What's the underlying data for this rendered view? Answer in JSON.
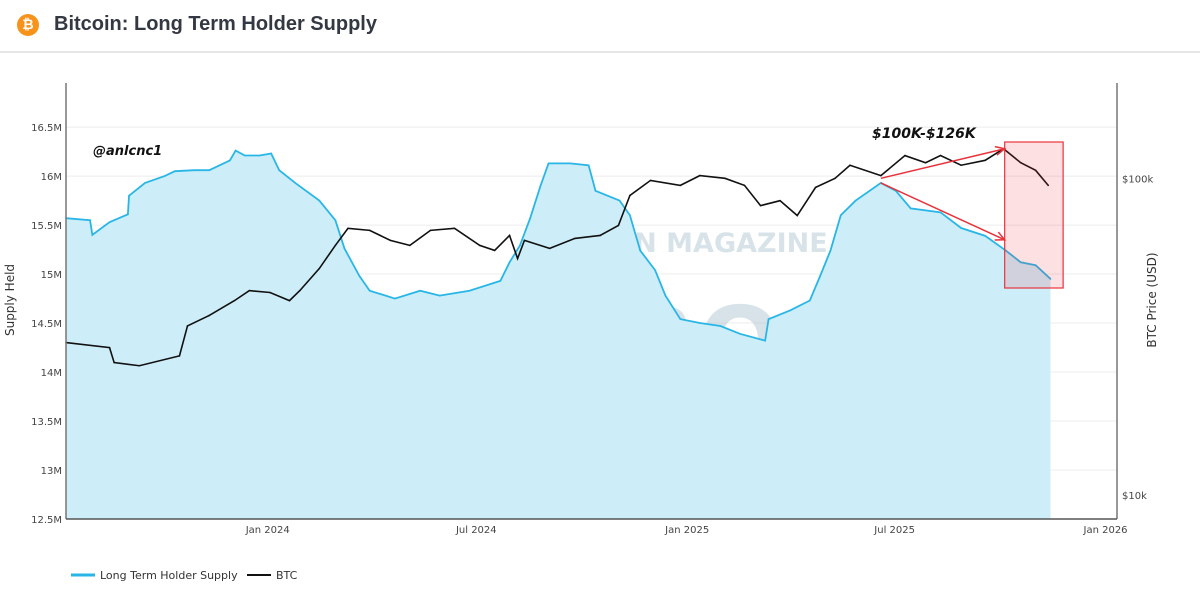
{
  "header": {
    "title": "Bitcoin: Long Term Holder Supply",
    "logo_icon": "bitcoin-icon",
    "logo_glyph": "₿"
  },
  "watermark": {
    "line1": "BITCOIN MAGAZINE",
    "line2": "PRO"
  },
  "chart_data": {
    "type": "line",
    "title": "Bitcoin: Long Term Holder Supply",
    "xlim": [
      "2023-07-09",
      "2026-01-11"
    ],
    "x_ticks": [
      {
        "date": "2024-01-01",
        "label": "Jan 2024"
      },
      {
        "date": "2024-07-01",
        "label": "Jul 2024"
      },
      {
        "date": "2025-01-01",
        "label": "Jan 2025"
      },
      {
        "date": "2025-07-01",
        "label": "Jul 2025"
      },
      {
        "date": "2026-01-01",
        "label": "Jan 2026"
      }
    ],
    "y_left": {
      "label": "Supply Held",
      "range": [
        12.5,
        16.95
      ],
      "unit": "M",
      "ticks": [
        {
          "value": 12.5,
          "label": "12.5M"
        },
        {
          "value": 13,
          "label": "13M"
        },
        {
          "value": 13.5,
          "label": "13.5M"
        },
        {
          "value": 14,
          "label": "14M"
        },
        {
          "value": 14.5,
          "label": "14.5M"
        },
        {
          "value": 15,
          "label": "15M"
        },
        {
          "value": 15.5,
          "label": "15.5M"
        },
        {
          "value": 16,
          "label": "16M"
        },
        {
          "value": 16.5,
          "label": "16.5M"
        }
      ]
    },
    "y_right": {
      "label": "BTC Price (USD)",
      "scale": "log",
      "range": [
        8.4,
        200
      ],
      "unit": "k USD",
      "ticks": [
        {
          "value": 10,
          "label": "$10k"
        },
        {
          "value": 100,
          "label": "$100k"
        }
      ]
    },
    "grid": true,
    "legend_position": "bottom-left",
    "series": [
      {
        "name": "Long Term Holder Supply",
        "axis": "left",
        "color": "#29b6e6",
        "fill": "#cdeef9",
        "points": [
          [
            "2023-07-09",
            15.57
          ],
          [
            "2023-07-30",
            15.55
          ],
          [
            "2023-08-01",
            15.4
          ],
          [
            "2023-08-16",
            15.53
          ],
          [
            "2023-09-01",
            15.61
          ],
          [
            "2023-09-02",
            15.8
          ],
          [
            "2023-09-16",
            15.93
          ],
          [
            "2023-10-03",
            16.0
          ],
          [
            "2023-10-12",
            16.05
          ],
          [
            "2023-10-29",
            16.06
          ],
          [
            "2023-11-11",
            16.06
          ],
          [
            "2023-11-29",
            16.16
          ],
          [
            "2023-12-04",
            16.26
          ],
          [
            "2023-12-12",
            16.21
          ],
          [
            "2023-12-25",
            16.21
          ],
          [
            "2024-01-04",
            16.23
          ],
          [
            "2024-01-11",
            16.06
          ],
          [
            "2024-01-25",
            15.93
          ],
          [
            "2024-02-15",
            15.75
          ],
          [
            "2024-02-29",
            15.55
          ],
          [
            "2024-03-08",
            15.26
          ],
          [
            "2024-03-21",
            14.98
          ],
          [
            "2024-03-30",
            14.83
          ],
          [
            "2024-04-21",
            14.75
          ],
          [
            "2024-05-13",
            14.83
          ],
          [
            "2024-05-30",
            14.78
          ],
          [
            "2024-06-25",
            14.83
          ],
          [
            "2024-07-22",
            14.93
          ],
          [
            "2024-07-30",
            15.12
          ],
          [
            "2024-08-08",
            15.29
          ],
          [
            "2024-08-17",
            15.57
          ],
          [
            "2024-08-26",
            15.9
          ],
          [
            "2024-09-02",
            16.13
          ],
          [
            "2024-09-21",
            16.13
          ],
          [
            "2024-10-07",
            16.11
          ],
          [
            "2024-10-13",
            15.85
          ],
          [
            "2024-11-03",
            15.75
          ],
          [
            "2024-11-12",
            15.6
          ],
          [
            "2024-11-21",
            15.24
          ],
          [
            "2024-12-04",
            15.04
          ],
          [
            "2024-12-13",
            14.78
          ],
          [
            "2024-12-26",
            14.54
          ],
          [
            "2025-01-12",
            14.5
          ],
          [
            "2025-01-30",
            14.47
          ],
          [
            "2025-02-16",
            14.39
          ],
          [
            "2025-03-10",
            14.32
          ],
          [
            "2025-03-13",
            14.54
          ],
          [
            "2025-04-01",
            14.63
          ],
          [
            "2025-04-18",
            14.73
          ],
          [
            "2025-04-27",
            14.98
          ],
          [
            "2025-05-06",
            15.24
          ],
          [
            "2025-05-15",
            15.6
          ],
          [
            "2025-05-28",
            15.75
          ],
          [
            "2025-06-19",
            15.93
          ],
          [
            "2025-07-02",
            15.85
          ],
          [
            "2025-07-15",
            15.67
          ],
          [
            "2025-08-10",
            15.63
          ],
          [
            "2025-08-28",
            15.47
          ],
          [
            "2025-09-18",
            15.39
          ],
          [
            "2025-10-06",
            15.24
          ],
          [
            "2025-10-19",
            15.12
          ],
          [
            "2025-11-01",
            15.09
          ],
          [
            "2025-11-14",
            14.95
          ]
        ]
      },
      {
        "name": "BTC",
        "axis": "right",
        "color": "#111111",
        "points": [
          [
            "2023-07-09",
            30.3
          ],
          [
            "2023-08-16",
            29.2
          ],
          [
            "2023-08-20",
            26.2
          ],
          [
            "2023-09-11",
            25.6
          ],
          [
            "2023-10-16",
            27.5
          ],
          [
            "2023-10-23",
            34.2
          ],
          [
            "2023-11-11",
            36.9
          ],
          [
            "2023-12-03",
            41.1
          ],
          [
            "2023-12-16",
            44.2
          ],
          [
            "2024-01-03",
            43.6
          ],
          [
            "2024-01-20",
            41.1
          ],
          [
            "2024-01-29",
            44.2
          ],
          [
            "2024-02-15",
            51.9
          ],
          [
            "2024-02-29",
            61.4
          ],
          [
            "2024-03-11",
            69.5
          ],
          [
            "2024-03-30",
            68.5
          ],
          [
            "2024-04-17",
            63.7
          ],
          [
            "2024-05-04",
            61.4
          ],
          [
            "2024-05-22",
            68.5
          ],
          [
            "2024-06-12",
            69.5
          ],
          [
            "2024-07-04",
            61.4
          ],
          [
            "2024-07-17",
            59.2
          ],
          [
            "2024-07-30",
            66.0
          ],
          [
            "2024-08-06",
            55.8
          ],
          [
            "2024-08-12",
            63.7
          ],
          [
            "2024-09-03",
            60.1
          ],
          [
            "2024-09-25",
            64.6
          ],
          [
            "2024-10-17",
            66.0
          ],
          [
            "2024-11-02",
            71.0
          ],
          [
            "2024-11-12",
            88.3
          ],
          [
            "2024-11-30",
            98.5
          ],
          [
            "2024-12-26",
            95.0
          ],
          [
            "2025-01-12",
            102
          ],
          [
            "2025-02-03",
            100
          ],
          [
            "2025-02-20",
            95.0
          ],
          [
            "2025-03-06",
            82.0
          ],
          [
            "2025-03-23",
            85.0
          ],
          [
            "2025-04-07",
            76.3
          ],
          [
            "2025-04-23",
            93.6
          ],
          [
            "2025-05-10",
            100
          ],
          [
            "2025-05-23",
            110
          ],
          [
            "2025-06-19",
            102
          ],
          [
            "2025-07-10",
            118
          ],
          [
            "2025-07-28",
            112
          ],
          [
            "2025-08-10",
            118
          ],
          [
            "2025-08-28",
            110
          ],
          [
            "2025-09-18",
            114
          ],
          [
            "2025-10-04",
            124
          ],
          [
            "2025-10-19",
            112
          ],
          [
            "2025-11-01",
            106
          ],
          [
            "2025-11-12",
            95.0
          ]
        ]
      }
    ],
    "annotations": {
      "author": "@anlcnc1",
      "price_range_label": "$100K-$126K",
      "highlight_color": "#e8323c",
      "highlight_range": [
        "2025-10-05",
        "2025-11-25"
      ],
      "arrows": [
        {
          "from": [
            "2025-06-19",
            100
          ],
          "to": [
            "2025-10-05",
            124
          ],
          "axis": "right"
        },
        {
          "from": [
            "2025-06-19",
            15.93
          ],
          "to": [
            "2025-10-05",
            15.35
          ],
          "axis": "left"
        }
      ]
    }
  }
}
